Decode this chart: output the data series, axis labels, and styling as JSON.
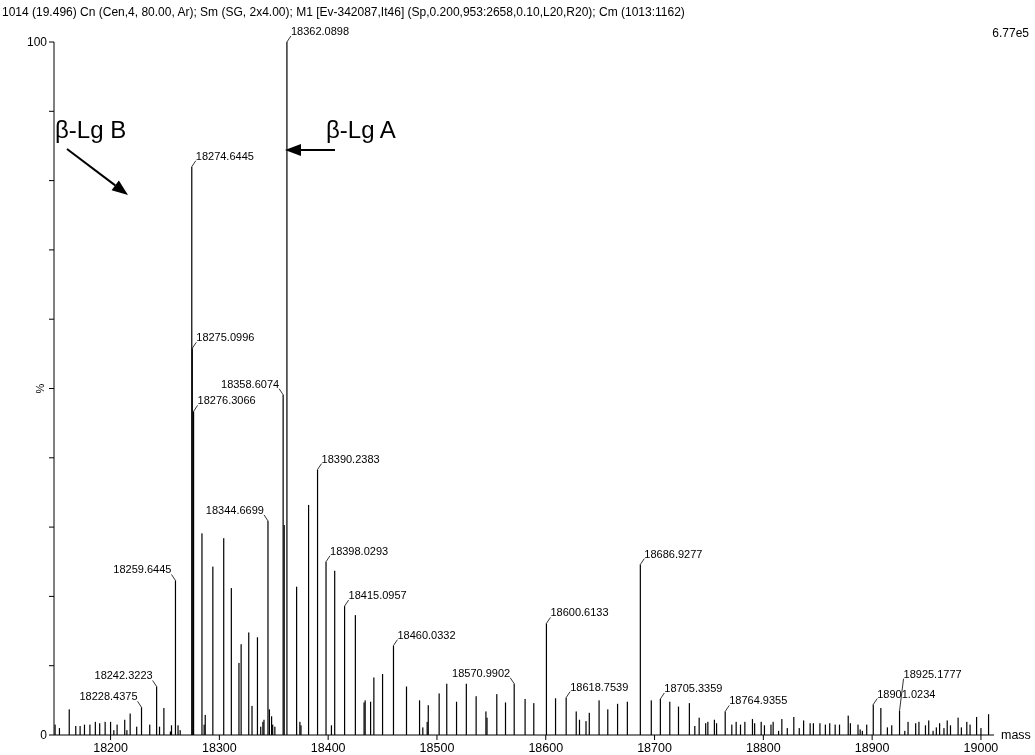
{
  "chart_data": {
    "type": "bar",
    "title": "1014 (19.496) Cn (Cen,4, 80.00, Ar); Sm (SG, 2x4.00); M1 [Ev-342087,It46] (Sp,0.200,953:2658,0.10,L20,R20); Cm (1013:1162)",
    "xlabel": "mass",
    "ylabel": "%",
    "color": "#000000",
    "annotations": [
      "β-Lg B",
      "β-Lg  A",
      "6.77e5",
      {
        "text": "18228.4375",
        "x": 18228.4375,
        "y": 4.0
      },
      {
        "text": "18242.3223",
        "x": 18242.3223,
        "y": 7.0
      },
      {
        "text": "18259.6445",
        "x": 18259.6445,
        "y": 22.3
      },
      {
        "text": "18274.6445",
        "x": 18274.6445,
        "y": 82.0
      },
      {
        "text": "18275.0996",
        "x": 18275.0996,
        "y": 55.8
      },
      {
        "text": "18276.3066",
        "x": 18276.3066,
        "y": 46.7
      },
      {
        "text": "18344.6699",
        "x": 18344.6699,
        "y": 30.9
      },
      {
        "text": "18358.6074",
        "x": 18358.6074,
        "y": 49.1
      },
      {
        "text": "18362.0898",
        "x": 18362.0898,
        "y": 100
      },
      {
        "text": "18390.2383",
        "x": 18390.2383,
        "y": 38.3
      },
      {
        "text": "18398.0293",
        "x": 18398.0293,
        "y": 25.0
      },
      {
        "text": "18415.0957",
        "x": 18415.0957,
        "y": 18.6
      },
      {
        "text": "18460.0332",
        "x": 18460.0332,
        "y": 12.9
      },
      {
        "text": "18570.9902",
        "x": 18570.9902,
        "y": 7.4
      },
      {
        "text": "18600.6133",
        "x": 18600.6133,
        "y": 16.1
      },
      {
        "text": "18618.7539",
        "x": 18618.7539,
        "y": 5.4
      },
      {
        "text": "18686.9277",
        "x": 18686.9277,
        "y": 24.6
      },
      {
        "text": "18705.3359",
        "x": 18705.3359,
        "y": 5.2
      },
      {
        "text": "18764.9355",
        "x": 18764.9355,
        "y": 3.4
      },
      {
        "text": "18901.0234",
        "x": 18901.0234,
        "y": 4.4
      },
      {
        "text": "18925.1777",
        "x": 18925.1777,
        "y": 3.5
      }
    ],
    "xlim": [
      18148,
      19012
    ],
    "xticks": [
      18200,
      18300,
      18400,
      18500,
      18600,
      18700,
      18800,
      18900,
      19000
    ],
    "ylim": [
      0,
      100
    ],
    "yticks": [
      0,
      {
        "value": 10,
        "label": null
      },
      {
        "value": 20,
        "label": null
      },
      {
        "value": 30,
        "label": null
      },
      {
        "value": 40,
        "label": null
      },
      {
        "value": 50,
        "label": null
      },
      {
        "value": 60,
        "label": null
      },
      {
        "value": 70,
        "label": null
      },
      {
        "value": 80,
        "label": null
      },
      {
        "value": 90,
        "label": null
      },
      100
    ],
    "x": [
      18149,
      18153,
      18162,
      18168,
      18172,
      18176,
      18181,
      18186,
      18190,
      18195,
      18200,
      18203,
      18206,
      18213,
      18215,
      18218,
      18224,
      18228.4375,
      18236,
      18242.3223,
      18245,
      18249,
      18255,
      18256,
      18259.6445,
      18262,
      18264,
      18274.6445,
      18275.0996,
      18276.3066,
      18284,
      18286,
      18287,
      18294,
      18304,
      18311,
      18318,
      18320,
      18327,
      18330,
      18335,
      18338,
      18340,
      18341,
      18344.6699,
      18346,
      18348,
      18349,
      18351,
      18358.6074,
      18359.6,
      18362.0898,
      18371,
      18374,
      18375,
      18382,
      18390.2383,
      18398.0293,
      18403,
      18406,
      18415.0957,
      18425,
      18433,
      18434,
      18439,
      18442,
      18450,
      18460.0332,
      18472,
      18484,
      18487,
      18491,
      18492,
      18502,
      18509,
      18518,
      18527,
      18536,
      18545,
      18546,
      18555,
      18563,
      18570.9902,
      18581,
      18589,
      18600.6133,
      18609,
      18618.7539,
      18628,
      18631,
      18637,
      18640,
      18649,
      18657,
      18666,
      18675,
      18686.9277,
      18697,
      18705.3359,
      18714,
      18722,
      18732,
      18737,
      18741,
      18747,
      18749,
      18755,
      18757,
      18764.9355,
      18771,
      18775,
      18779,
      18783,
      18790,
      18792,
      18798,
      18801,
      18807,
      18809,
      18814,
      18817,
      18822,
      18828,
      18833,
      18837,
      18843,
      18846,
      18852,
      18857,
      18861,
      18866,
      18870,
      18878,
      18880,
      18887,
      18889,
      18891,
      18895,
      18901.0234,
      18908,
      18914,
      18918,
      18925.1777,
      18930,
      18933,
      18940,
      18943,
      18949,
      18952,
      18956,
      18959,
      18962,
      18966,
      18969,
      18972,
      18979,
      18982,
      18987,
      18990,
      18996,
      19000,
      19007
    ],
    "values": [
      1.5,
      1.0,
      3.7,
      1.3,
      1.3,
      1.5,
      1.5,
      1.9,
      1.7,
      1.9,
      1.9,
      0.7,
      1.5,
      2.2,
      0.7,
      3.1,
      1.2,
      4.0,
      1.5,
      7.0,
      1.2,
      3.9,
      0.5,
      1.4,
      22.3,
      1.4,
      0.7,
      82.0,
      55.8,
      46.7,
      29.1,
      1.5,
      2.9,
      24.3,
      28.4,
      21.2,
      10.4,
      13.1,
      14.8,
      4.2,
      14.1,
      1.2,
      1.9,
      2.2,
      30.9,
      3.7,
      2.7,
      1.5,
      1.2,
      49.1,
      30.3,
      100,
      21.4,
      1.9,
      1.4,
      33.2,
      38.3,
      25.0,
      1.4,
      23.7,
      18.6,
      17.3,
      4.7,
      5.0,
      4.8,
      8.3,
      8.8,
      12.9,
      7.0,
      5.0,
      1.1,
      1.9,
      4.3,
      6.0,
      7.4,
      4.8,
      7.4,
      5.6,
      3.4,
      2.5,
      5.9,
      4.7,
      7.4,
      5.2,
      4.6,
      16.1,
      5.3,
      5.4,
      3.4,
      2.2,
      2.0,
      3.2,
      5.0,
      3.7,
      4.5,
      4.8,
      24.6,
      5.0,
      5.2,
      4.8,
      4.1,
      4.6,
      1.3,
      2.5,
      1.7,
      1.9,
      2.2,
      1.7,
      3.4,
      1.5,
      1.9,
      1.5,
      1.9,
      2.3,
      1.7,
      1.9,
      1.4,
      1.5,
      1.9,
      0.6,
      2.3,
      1.0,
      2.6,
      1.0,
      2.1,
      1.7,
      1.7,
      1.7,
      1.5,
      1.7,
      1.5,
      1.5,
      2.8,
      1.7,
      1.5,
      0.8,
      0.6,
      1.5,
      4.4,
      3.9,
      1.1,
      1.4,
      3.5,
      0.6,
      1.9,
      1.7,
      1.9,
      1.4,
      2.1,
      0.6,
      1.1,
      1.7,
      1.0,
      2.1,
      1.4,
      2.5,
      1.1,
      1.9,
      1.5,
      2.6,
      1.0,
      3.0
    ]
  }
}
